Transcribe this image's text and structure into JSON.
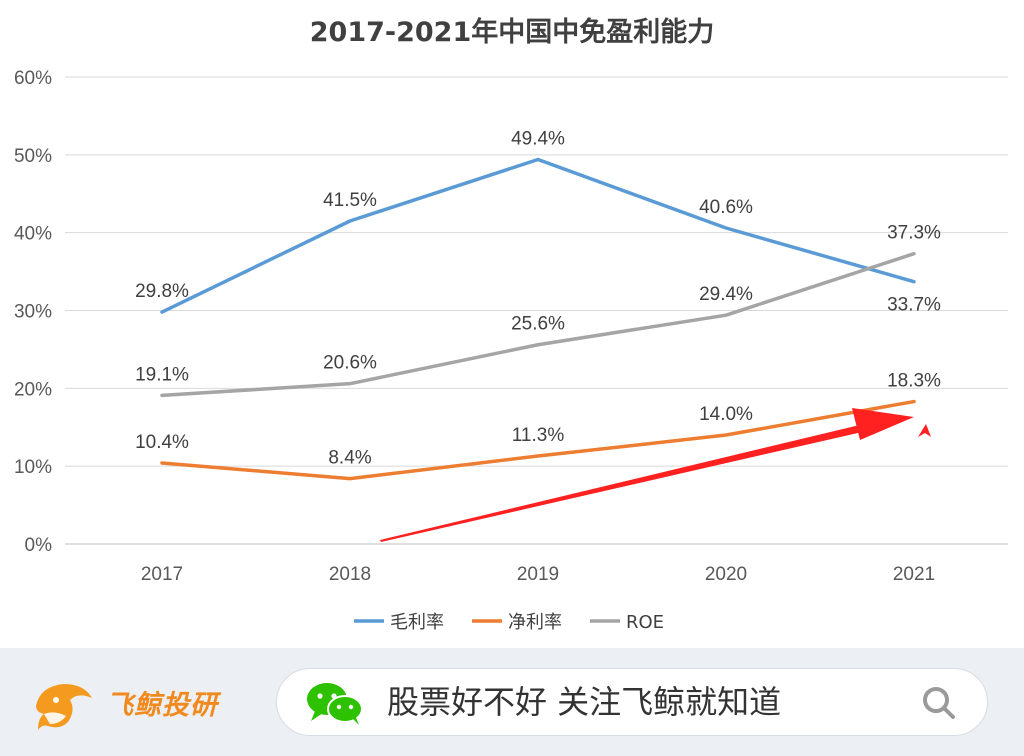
{
  "chart_data": {
    "type": "line",
    "title": "2017-2021年中国中免盈利能力",
    "categories": [
      "2017",
      "2018",
      "2019",
      "2020",
      "2021"
    ],
    "y_ticks": [
      "0%",
      "10%",
      "20%",
      "30%",
      "40%",
      "50%",
      "60%"
    ],
    "ylim": [
      0,
      60
    ],
    "grid": true,
    "legend_position": "bottom",
    "series": [
      {
        "name": "毛利率",
        "color": "#5b9bd5",
        "values": [
          29.8,
          41.5,
          49.4,
          40.6,
          33.7
        ],
        "labels": [
          "29.8%",
          "41.5%",
          "49.4%",
          "40.6%",
          "33.7%"
        ]
      },
      {
        "name": "净利率",
        "color": "#ed7d31",
        "values": [
          10.4,
          8.4,
          11.3,
          14.0,
          18.3
        ],
        "labels": [
          "10.4%",
          "8.4%",
          "11.3%",
          "14.0%",
          "18.3%"
        ]
      },
      {
        "name": "ROE",
        "color": "#a5a5a5",
        "values": [
          19.1,
          20.6,
          25.6,
          29.4,
          37.3
        ],
        "labels": [
          "19.1%",
          "20.6%",
          "25.6%",
          "29.4%",
          "37.3%"
        ]
      }
    ],
    "annotation": {
      "type": "trend-arrow",
      "color": "#ff2020"
    }
  },
  "footer": {
    "brand_name": "飞鲸投研",
    "search_text": "股票好不好 关注飞鲸就知道",
    "brand_color": "#f08a1e",
    "wechat_color": "#2dc100"
  }
}
